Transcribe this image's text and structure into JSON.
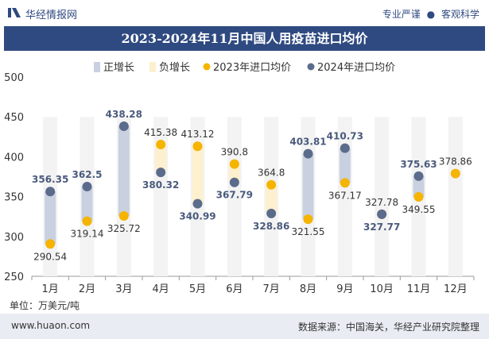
{
  "header": {
    "brand": "华经情报网",
    "slogan_left": "专业严谨",
    "slogan_sep": "●",
    "slogan_right": "客观科学",
    "title": "2023-2024年11月中国人用疫苗进口均价"
  },
  "footer": {
    "unit": "单位：万美元/吨",
    "website": "www.huaon.com",
    "source": "数据来源：中国海关，华经产业研究院整理"
  },
  "colors": {
    "brand": "#2f4a80",
    "pos_bar": "#c9d0e0",
    "neg_bar": "#fdf0cf",
    "series2023": "#f5b400",
    "series2024": "#5b6b8c",
    "label2024": "#4a5a7c"
  },
  "chart_data": {
    "type": "scatter",
    "title": "2023-2024年11月中国人用疫苗进口均价",
    "ylabel": "万美元/吨",
    "ylim": [
      250,
      500
    ],
    "yticks": [
      "250",
      "300",
      "350",
      "400",
      "450",
      "500"
    ],
    "categories": [
      "1月",
      "2月",
      "3月",
      "4月",
      "5月",
      "6月",
      "7月",
      "8月",
      "9月",
      "10月",
      "11月",
      "12月"
    ],
    "legend": [
      "正增长",
      "负增长",
      "2023年进口均价",
      "2024年进口均价"
    ],
    "series": [
      {
        "name": "2023年进口均价",
        "values": [
          290.54,
          319.14,
          325.72,
          415.38,
          413.12,
          390.8,
          364.8,
          321.55,
          367.17,
          327.78,
          349.55,
          378.86
        ],
        "labels": [
          "290.54",
          "319.14",
          "325.72",
          "415.38",
          "413.12",
          "390.8",
          "364.8",
          "321.55",
          "367.17",
          "327.78",
          "349.55",
          "378.86"
        ]
      },
      {
        "name": "2024年进口均价",
        "values": [
          356.35,
          362.5,
          438.28,
          380.32,
          340.99,
          367.79,
          328.86,
          403.81,
          410.73,
          327.77,
          375.63,
          null
        ],
        "labels": [
          "356.35",
          "362.5",
          "438.28",
          "380.32",
          "340.99",
          "367.79",
          "328.86",
          "403.81",
          "410.73",
          "327.77",
          "375.63",
          ""
        ]
      }
    ]
  }
}
